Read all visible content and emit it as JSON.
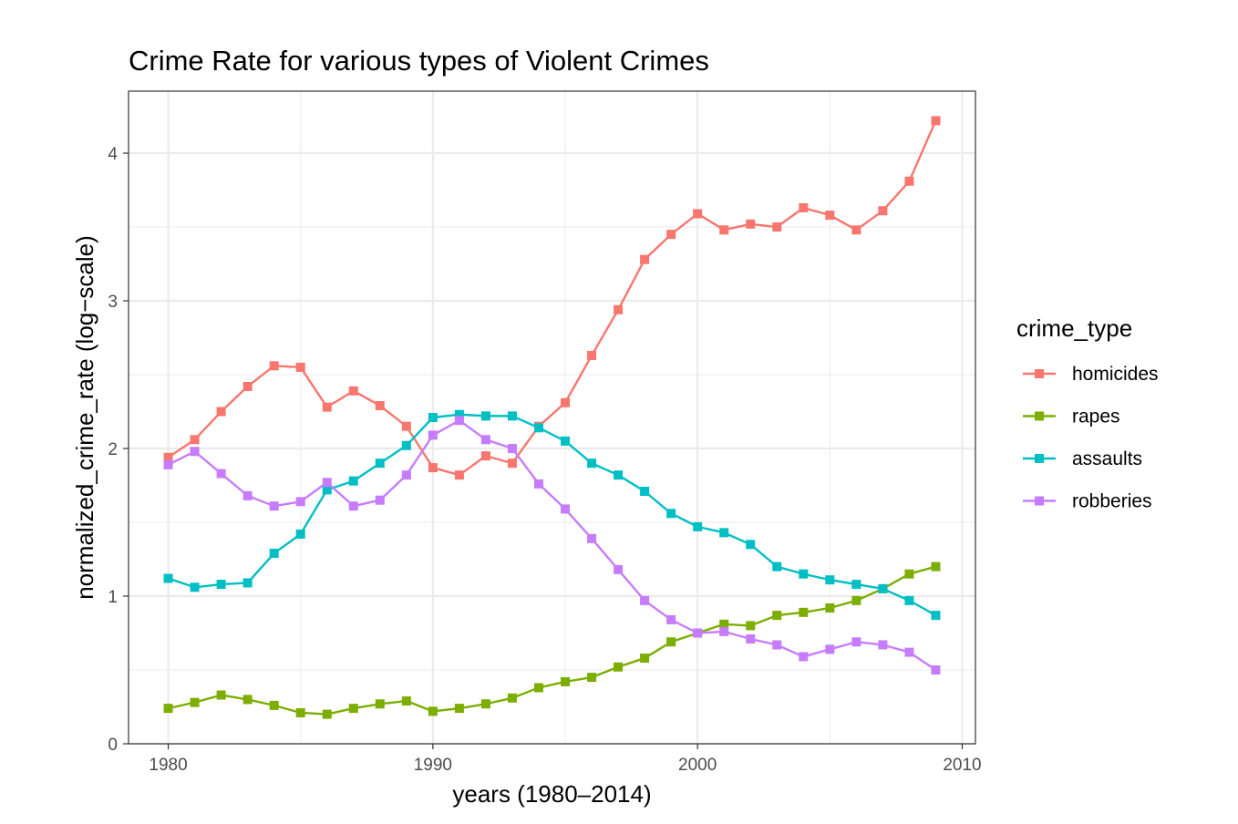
{
  "chart_data": {
    "type": "line",
    "title": "Crime Rate for various types of Violent Crimes",
    "xlabel": "years (1980–2014)",
    "ylabel": "normalized_crime_rate (log−scale)",
    "xlim": [
      1978.5,
      2010.5
    ],
    "ylim": [
      0,
      4.42
    ],
    "x_ticks": [
      1980,
      1990,
      2000,
      2010
    ],
    "y_ticks": [
      0,
      1,
      2,
      3,
      4
    ],
    "x_minor_ticks": [
      1985,
      1995,
      2005
    ],
    "y_minor_ticks": [
      0.5,
      1.5,
      2.5,
      3.5
    ],
    "grid": true,
    "legend": {
      "title": "crime_type",
      "position": "right"
    },
    "x": [
      1980,
      1981,
      1982,
      1983,
      1984,
      1985,
      1986,
      1987,
      1988,
      1989,
      1990,
      1991,
      1992,
      1993,
      1994,
      1995,
      1996,
      1997,
      1998,
      1999,
      2000,
      2001,
      2002,
      2003,
      2004,
      2005,
      2006,
      2007,
      2008,
      2009
    ],
    "series": [
      {
        "name": "homicides",
        "color": "#F8766D",
        "values": [
          1.94,
          2.06,
          2.25,
          2.42,
          2.56,
          2.55,
          2.28,
          2.39,
          2.29,
          2.15,
          1.87,
          1.82,
          1.95,
          1.9,
          2.15,
          2.31,
          2.63,
          2.94,
          3.28,
          3.45,
          3.59,
          3.48,
          3.52,
          3.5,
          3.63,
          3.58,
          3.48,
          3.61,
          3.81,
          4.22
        ]
      },
      {
        "name": "rapes",
        "color": "#7CAE00",
        "values": [
          0.24,
          0.28,
          0.33,
          0.3,
          0.26,
          0.21,
          0.2,
          0.24,
          0.27,
          0.29,
          0.22,
          0.24,
          0.27,
          0.31,
          0.38,
          0.42,
          0.45,
          0.52,
          0.58,
          0.69,
          0.75,
          0.81,
          0.8,
          0.87,
          0.89,
          0.92,
          0.97,
          1.05,
          1.15,
          1.2
        ]
      },
      {
        "name": "assaults",
        "color": "#00BFC4",
        "values": [
          1.12,
          1.06,
          1.08,
          1.09,
          1.29,
          1.42,
          1.72,
          1.78,
          1.9,
          2.02,
          2.21,
          2.23,
          2.22,
          2.22,
          2.14,
          2.05,
          1.9,
          1.82,
          1.71,
          1.56,
          1.47,
          1.43,
          1.35,
          1.2,
          1.15,
          1.11,
          1.08,
          1.05,
          0.97,
          0.87
        ]
      },
      {
        "name": "robberies",
        "color": "#C77CFF",
        "values": [
          1.89,
          1.98,
          1.83,
          1.68,
          1.61,
          1.64,
          1.77,
          1.61,
          1.65,
          1.82,
          2.09,
          2.19,
          2.06,
          2.0,
          1.76,
          1.59,
          1.39,
          1.18,
          0.97,
          0.84,
          0.75,
          0.76,
          0.71,
          0.67,
          0.59,
          0.64,
          0.69,
          0.67,
          0.62,
          0.5
        ]
      }
    ]
  }
}
